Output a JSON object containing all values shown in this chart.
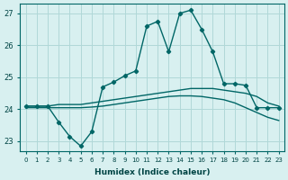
{
  "xlabel": "Humidex (Indice chaleur)",
  "bg_color": "#d8f0f0",
  "grid_color": "#b0d8d8",
  "line_color": "#006666",
  "xlim": [
    -0.5,
    23.5
  ],
  "ylim": [
    22.7,
    27.3
  ],
  "yticks": [
    23,
    24,
    25,
    26,
    27
  ],
  "xticks": [
    0,
    1,
    2,
    3,
    4,
    5,
    6,
    7,
    8,
    9,
    10,
    11,
    12,
    13,
    14,
    15,
    16,
    17,
    18,
    19,
    20,
    21,
    22,
    23
  ],
  "series": [
    {
      "x": [
        0,
        1,
        2,
        3,
        4,
        5,
        6,
        7,
        8,
        9,
        10,
        11,
        12,
        13,
        14,
        15,
        16,
        17,
        18,
        19,
        20,
        21,
        22,
        23
      ],
      "y": [
        24.1,
        24.1,
        24.1,
        24.15,
        24.15,
        24.15,
        24.2,
        24.25,
        24.3,
        24.35,
        24.4,
        24.45,
        24.5,
        24.55,
        24.6,
        24.65,
        24.65,
        24.65,
        24.6,
        24.55,
        24.5,
        24.4,
        24.2,
        24.1
      ],
      "marker": false,
      "lw": 1.0
    },
    {
      "x": [
        0,
        1,
        2,
        3,
        4,
        5,
        6,
        7,
        8,
        9,
        10,
        11,
        12,
        13,
        14,
        15,
        16,
        17,
        18,
        19,
        20,
        21,
        22,
        23
      ],
      "y": [
        24.05,
        24.05,
        24.05,
        24.05,
        24.05,
        24.05,
        24.07,
        24.1,
        24.15,
        24.2,
        24.25,
        24.3,
        24.35,
        24.4,
        24.42,
        24.42,
        24.4,
        24.35,
        24.3,
        24.2,
        24.05,
        23.9,
        23.75,
        23.65
      ],
      "marker": false,
      "lw": 1.0
    },
    {
      "x": [
        0,
        1,
        2,
        3,
        4,
        5,
        6,
        7,
        8,
        9,
        10,
        11,
        12,
        13,
        14,
        15,
        16,
        17,
        18,
        19,
        20,
        21,
        22,
        23
      ],
      "y": [
        24.1,
        24.1,
        24.1,
        23.6,
        23.15,
        22.85,
        23.3,
        24.7,
        24.85,
        25.05,
        25.2,
        26.6,
        26.75,
        25.8,
        27.0,
        27.1,
        26.5,
        25.8,
        24.8,
        24.8,
        24.75,
        24.05,
        24.05,
        24.05
      ],
      "marker": true,
      "lw": 1.0
    }
  ]
}
